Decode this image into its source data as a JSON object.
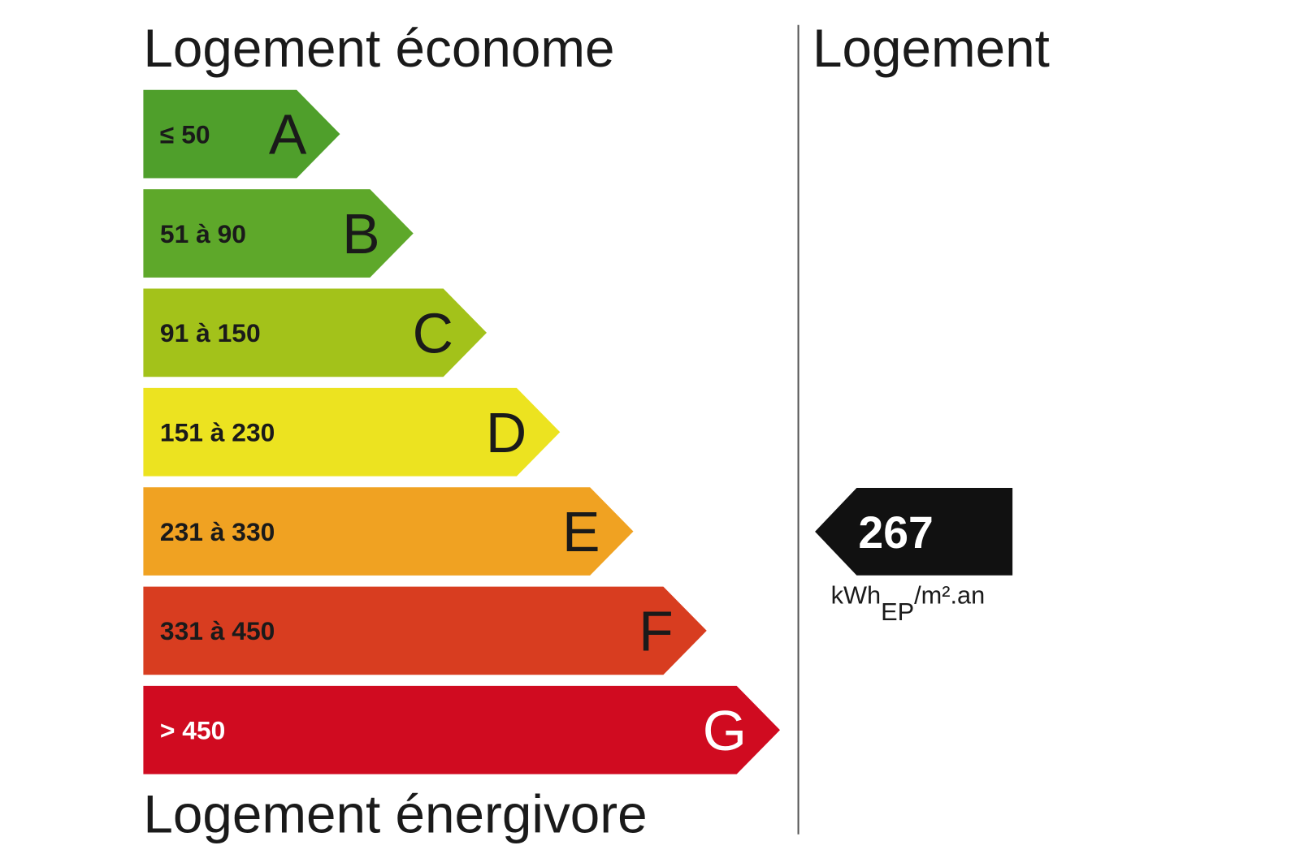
{
  "header": {
    "left_title": "Logement économe",
    "right_title": "Logement",
    "bottom_title": "Logement énergivore"
  },
  "classes": [
    {
      "range": "≤ 50",
      "letter": "A",
      "color": "#4f9f2b",
      "text_color": "#1a1a1a"
    },
    {
      "range": "51 à 90",
      "letter": "B",
      "color": "#5ea82a",
      "text_color": "#1a1a1a"
    },
    {
      "range": "91 à 150",
      "letter": "C",
      "color": "#a3c21a",
      "text_color": "#1a1a1a"
    },
    {
      "range": "151 à 230",
      "letter": "D",
      "color": "#ece320",
      "text_color": "#1a1a1a"
    },
    {
      "range": "231 à 330",
      "letter": "E",
      "color": "#f0a222",
      "text_color": "#1a1a1a"
    },
    {
      "range": "331 à 450",
      "letter": "F",
      "color": "#d83d20",
      "text_color": "#1a1a1a"
    },
    {
      "range": "> 450",
      "letter": "G",
      "color": "#d00b20",
      "text_color": "#ffffff"
    }
  ],
  "indicator": {
    "value": 267,
    "unit_main": "kWh",
    "unit_sub": "EP",
    "unit_rest": "/m².an",
    "color": "#111111"
  }
}
